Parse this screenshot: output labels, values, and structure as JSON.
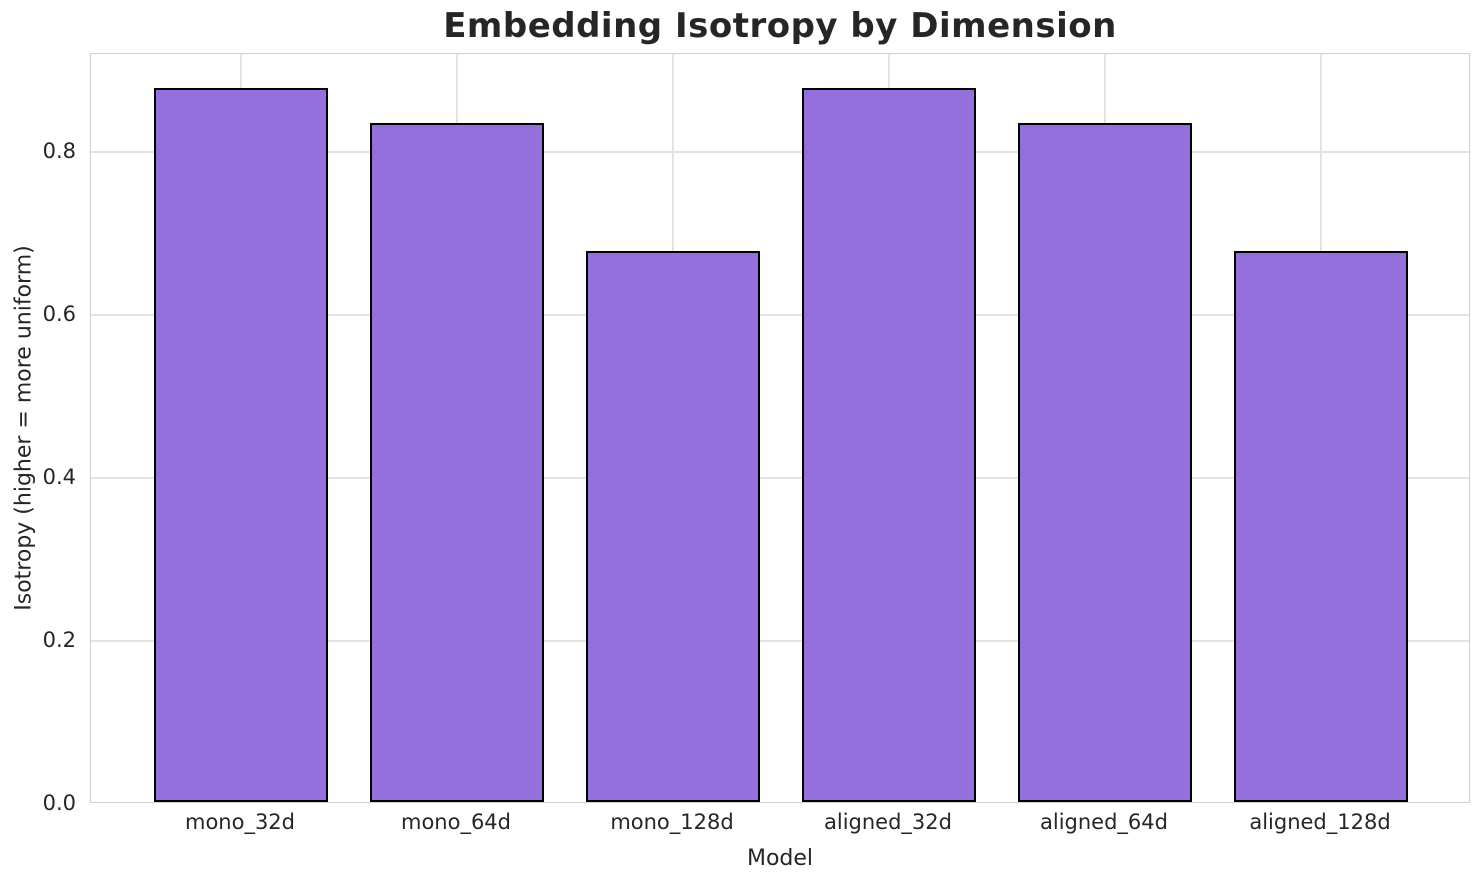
{
  "chart_data": {
    "type": "bar",
    "title": "Embedding Isotropy by Dimension",
    "xlabel": "Model",
    "ylabel": "Isotropy (higher = more uniform)",
    "categories": [
      "mono_32d",
      "mono_64d",
      "mono_128d",
      "aligned_32d",
      "aligned_64d",
      "aligned_128d"
    ],
    "values": [
      0.876,
      0.833,
      0.676,
      0.876,
      0.833,
      0.676
    ],
    "yticks": [
      0.0,
      0.2,
      0.4,
      0.6,
      0.8
    ],
    "ytick_labels": [
      "0.0",
      "0.2",
      "0.4",
      "0.6",
      "0.8"
    ],
    "ylim": [
      0,
      0.92
    ],
    "grid": true,
    "legend": false,
    "colors": {
      "bar_fill": "#9370DB",
      "bar_edge": "#000000",
      "grid_color": "#e3e3e3",
      "spine_color": "#cfcfcf",
      "text_color": "#262626",
      "background": "#ffffff"
    }
  }
}
